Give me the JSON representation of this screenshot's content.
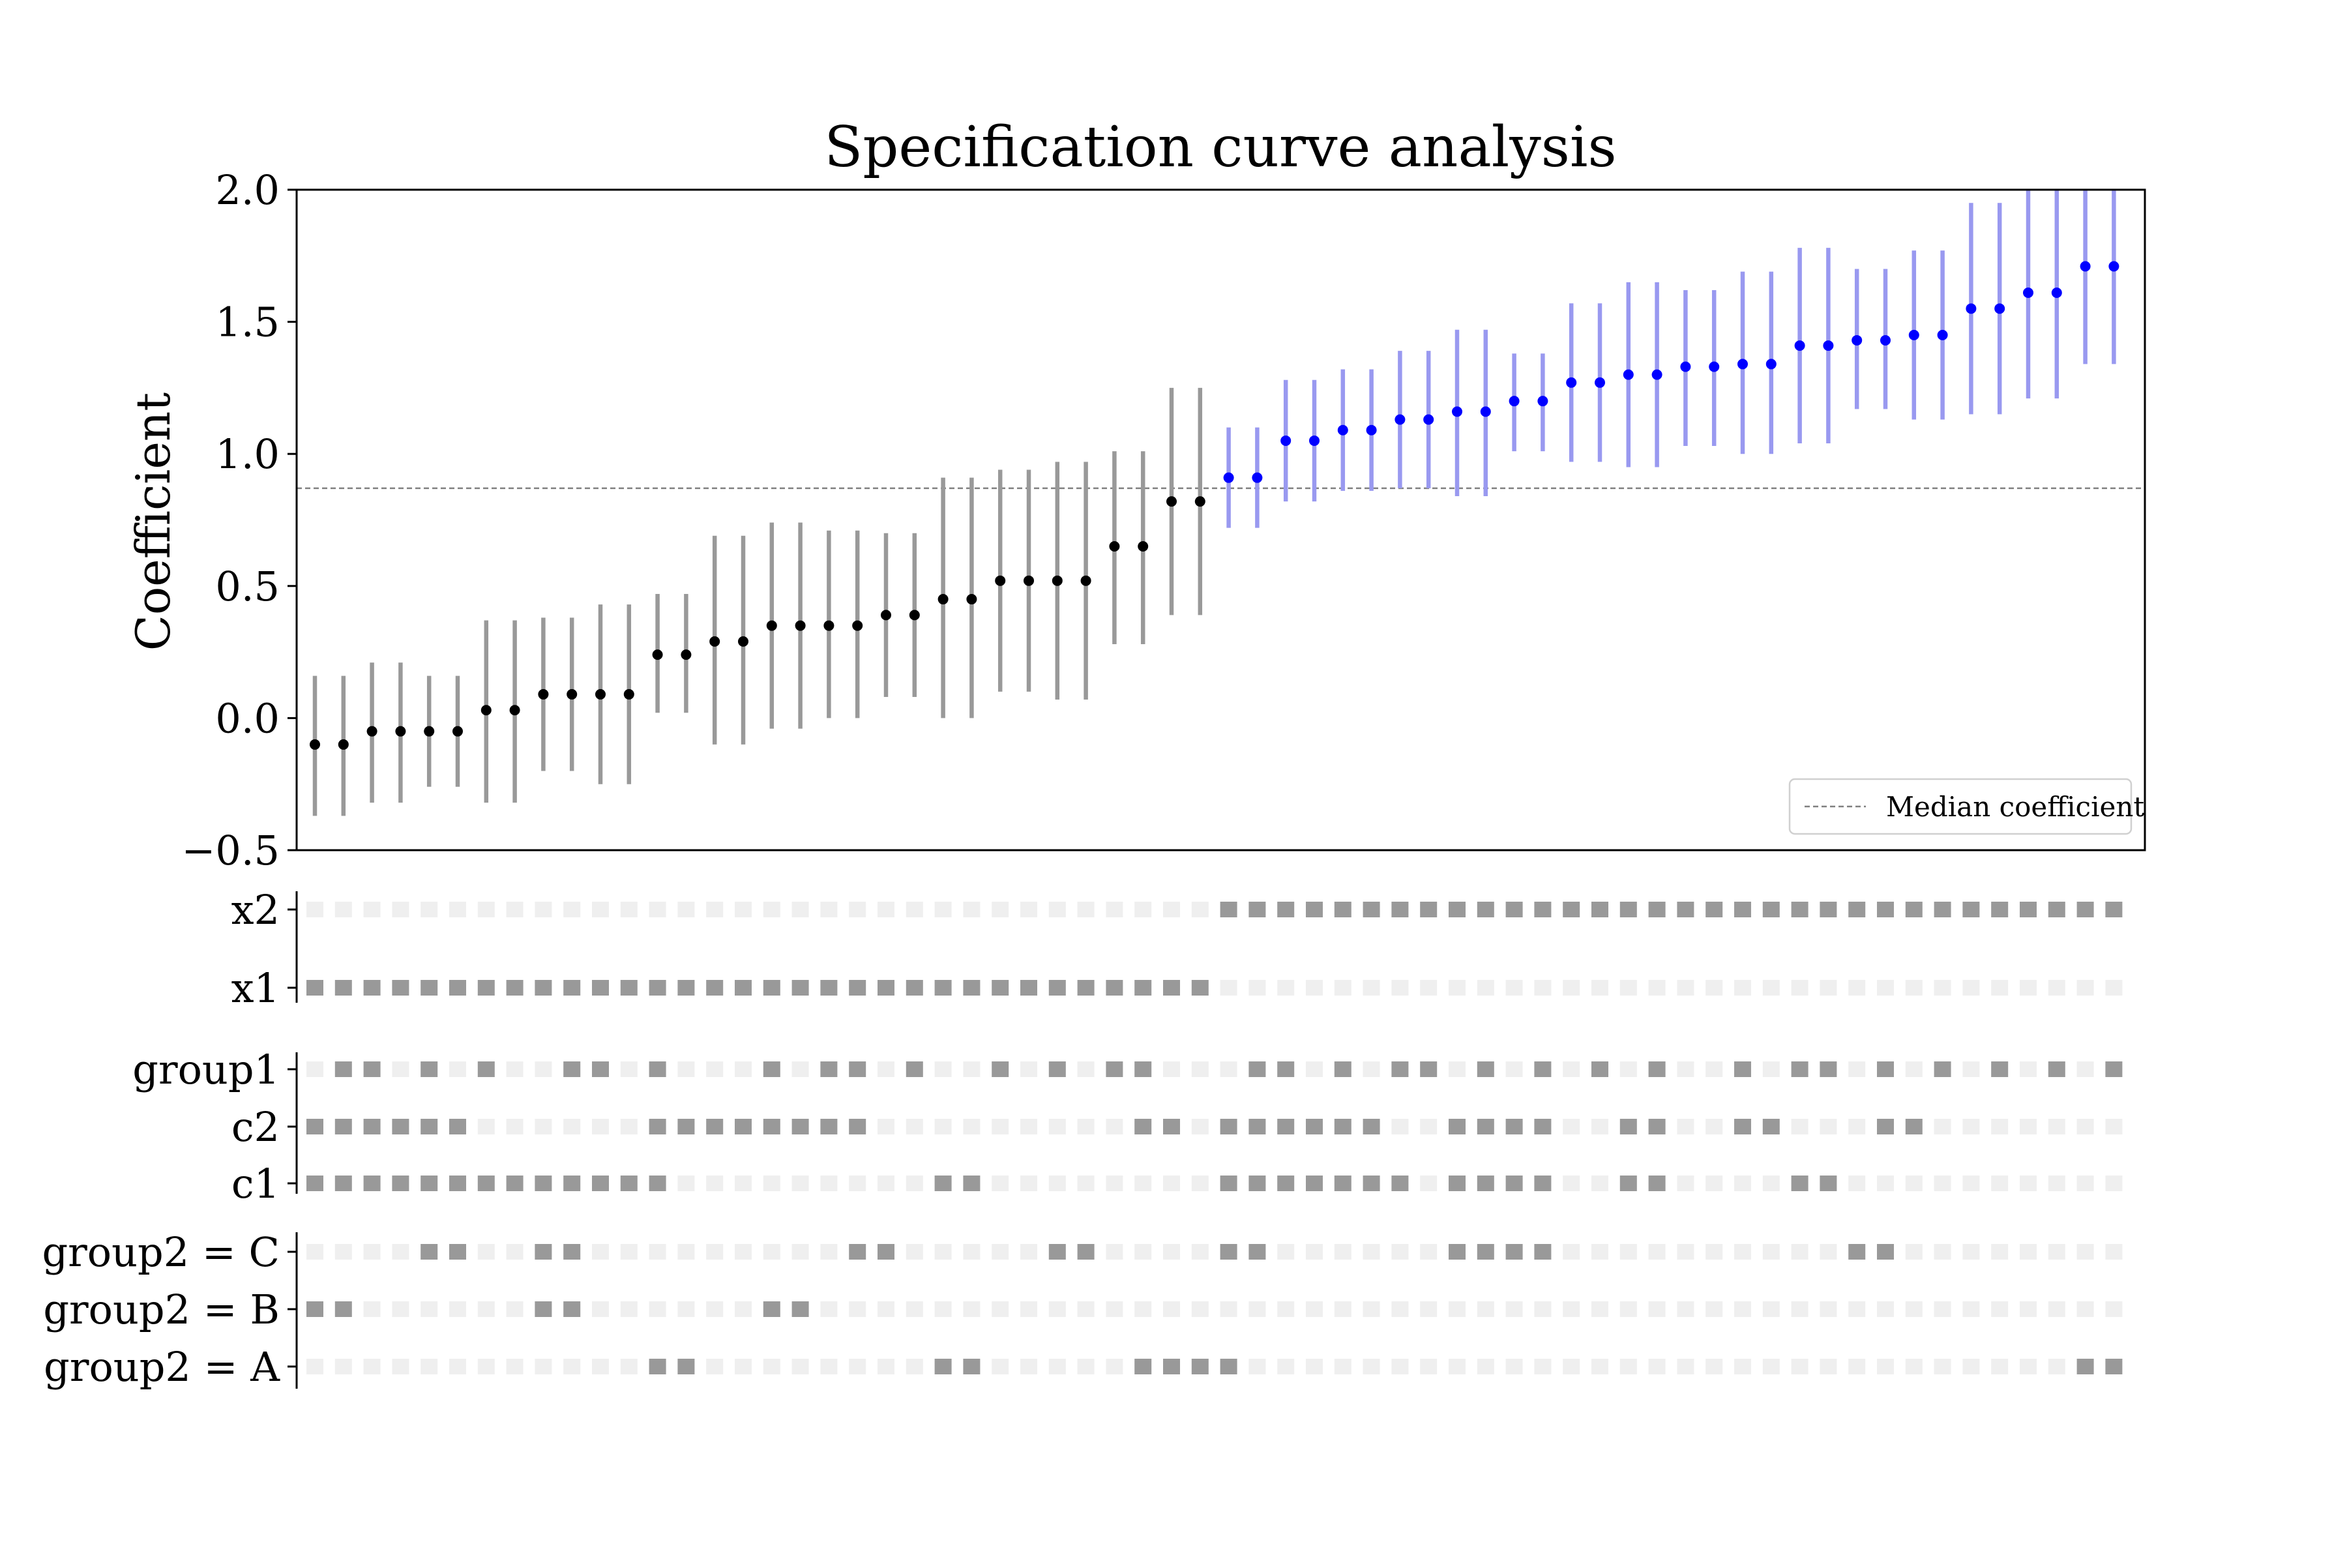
{
  "chart_data": {
    "type": "specification-curve",
    "title": "Specification curve analysis",
    "ylabel": "Coefficient",
    "xlabel": "",
    "ylim": [
      -0.5,
      2.0
    ],
    "yticks": [
      -0.5,
      0.0,
      0.5,
      1.0,
      1.5,
      2.0
    ],
    "ytick_labels": [
      "−0.5",
      "0.0",
      "0.5",
      "1.0",
      "1.5",
      "2.0"
    ],
    "grid": false,
    "median": 0.87,
    "legend": {
      "label": "Median coefficient",
      "placement": "lower right"
    },
    "colors": {
      "not_significant_point": "#000000",
      "not_significant_ci": "#999999",
      "significant_point": "#0000ff",
      "significant_ci": "#9999f0",
      "median_line": "#808080",
      "indicator_on": "#999999",
      "indicator_off": "#efefef"
    },
    "specifications": [
      {
        "coef": -0.1,
        "ci": [
          -0.37,
          0.16
        ],
        "significant": false
      },
      {
        "coef": -0.1,
        "ci": [
          -0.37,
          0.16
        ],
        "significant": false
      },
      {
        "coef": -0.05,
        "ci": [
          -0.32,
          0.21
        ],
        "significant": false
      },
      {
        "coef": -0.05,
        "ci": [
          -0.32,
          0.21
        ],
        "significant": false
      },
      {
        "coef": -0.05,
        "ci": [
          -0.26,
          0.16
        ],
        "significant": false
      },
      {
        "coef": -0.05,
        "ci": [
          -0.26,
          0.16
        ],
        "significant": false
      },
      {
        "coef": 0.03,
        "ci": [
          -0.32,
          0.37
        ],
        "significant": false
      },
      {
        "coef": 0.03,
        "ci": [
          -0.32,
          0.37
        ],
        "significant": false
      },
      {
        "coef": 0.09,
        "ci": [
          -0.2,
          0.38
        ],
        "significant": false
      },
      {
        "coef": 0.09,
        "ci": [
          -0.2,
          0.38
        ],
        "significant": false
      },
      {
        "coef": 0.09,
        "ci": [
          -0.25,
          0.43
        ],
        "significant": false
      },
      {
        "coef": 0.09,
        "ci": [
          -0.25,
          0.43
        ],
        "significant": false
      },
      {
        "coef": 0.24,
        "ci": [
          0.02,
          0.47
        ],
        "significant": false
      },
      {
        "coef": 0.24,
        "ci": [
          0.02,
          0.47
        ],
        "significant": false
      },
      {
        "coef": 0.29,
        "ci": [
          -0.1,
          0.69
        ],
        "significant": false
      },
      {
        "coef": 0.29,
        "ci": [
          -0.1,
          0.69
        ],
        "significant": false
      },
      {
        "coef": 0.35,
        "ci": [
          -0.04,
          0.74
        ],
        "significant": false
      },
      {
        "coef": 0.35,
        "ci": [
          -0.04,
          0.74
        ],
        "significant": false
      },
      {
        "coef": 0.35,
        "ci": [
          0.0,
          0.71
        ],
        "significant": false
      },
      {
        "coef": 0.35,
        "ci": [
          0.0,
          0.71
        ],
        "significant": false
      },
      {
        "coef": 0.39,
        "ci": [
          0.08,
          0.7
        ],
        "significant": false
      },
      {
        "coef": 0.39,
        "ci": [
          0.08,
          0.7
        ],
        "significant": false
      },
      {
        "coef": 0.45,
        "ci": [
          0.0,
          0.91
        ],
        "significant": false
      },
      {
        "coef": 0.45,
        "ci": [
          0.0,
          0.91
        ],
        "significant": false
      },
      {
        "coef": 0.52,
        "ci": [
          0.1,
          0.94
        ],
        "significant": false
      },
      {
        "coef": 0.52,
        "ci": [
          0.1,
          0.94
        ],
        "significant": false
      },
      {
        "coef": 0.52,
        "ci": [
          0.07,
          0.97
        ],
        "significant": false
      },
      {
        "coef": 0.52,
        "ci": [
          0.07,
          0.97
        ],
        "significant": false
      },
      {
        "coef": 0.65,
        "ci": [
          0.28,
          1.01
        ],
        "significant": false
      },
      {
        "coef": 0.65,
        "ci": [
          0.28,
          1.01
        ],
        "significant": false
      },
      {
        "coef": 0.82,
        "ci": [
          0.39,
          1.25
        ],
        "significant": false
      },
      {
        "coef": 0.82,
        "ci": [
          0.39,
          1.25
        ],
        "significant": false
      },
      {
        "coef": 0.91,
        "ci": [
          0.72,
          1.1
        ],
        "significant": true
      },
      {
        "coef": 0.91,
        "ci": [
          0.72,
          1.1
        ],
        "significant": true
      },
      {
        "coef": 1.05,
        "ci": [
          0.82,
          1.28
        ],
        "significant": true
      },
      {
        "coef": 1.05,
        "ci": [
          0.82,
          1.28
        ],
        "significant": true
      },
      {
        "coef": 1.09,
        "ci": [
          0.86,
          1.32
        ],
        "significant": true
      },
      {
        "coef": 1.09,
        "ci": [
          0.86,
          1.32
        ],
        "significant": true
      },
      {
        "coef": 1.13,
        "ci": [
          0.87,
          1.39
        ],
        "significant": true
      },
      {
        "coef": 1.13,
        "ci": [
          0.87,
          1.39
        ],
        "significant": true
      },
      {
        "coef": 1.16,
        "ci": [
          0.84,
          1.47
        ],
        "significant": true
      },
      {
        "coef": 1.16,
        "ci": [
          0.84,
          1.47
        ],
        "significant": true
      },
      {
        "coef": 1.2,
        "ci": [
          1.01,
          1.38
        ],
        "significant": true
      },
      {
        "coef": 1.2,
        "ci": [
          1.01,
          1.38
        ],
        "significant": true
      },
      {
        "coef": 1.27,
        "ci": [
          0.97,
          1.57
        ],
        "significant": true
      },
      {
        "coef": 1.27,
        "ci": [
          0.97,
          1.57
        ],
        "significant": true
      },
      {
        "coef": 1.3,
        "ci": [
          0.95,
          1.65
        ],
        "significant": true
      },
      {
        "coef": 1.3,
        "ci": [
          0.95,
          1.65
        ],
        "significant": true
      },
      {
        "coef": 1.33,
        "ci": [
          1.03,
          1.62
        ],
        "significant": true
      },
      {
        "coef": 1.33,
        "ci": [
          1.03,
          1.62
        ],
        "significant": true
      },
      {
        "coef": 1.34,
        "ci": [
          1.0,
          1.69
        ],
        "significant": true
      },
      {
        "coef": 1.34,
        "ci": [
          1.0,
          1.69
        ],
        "significant": true
      },
      {
        "coef": 1.41,
        "ci": [
          1.04,
          1.78
        ],
        "significant": true
      },
      {
        "coef": 1.41,
        "ci": [
          1.04,
          1.78
        ],
        "significant": true
      },
      {
        "coef": 1.43,
        "ci": [
          1.17,
          1.7
        ],
        "significant": true
      },
      {
        "coef": 1.43,
        "ci": [
          1.17,
          1.7
        ],
        "significant": true
      },
      {
        "coef": 1.45,
        "ci": [
          1.13,
          1.77
        ],
        "significant": true
      },
      {
        "coef": 1.45,
        "ci": [
          1.13,
          1.77
        ],
        "significant": true
      },
      {
        "coef": 1.55,
        "ci": [
          1.15,
          1.95
        ],
        "significant": true
      },
      {
        "coef": 1.55,
        "ci": [
          1.15,
          1.95
        ],
        "significant": true
      },
      {
        "coef": 1.61,
        "ci": [
          1.21,
          2.01
        ],
        "significant": true
      },
      {
        "coef": 1.61,
        "ci": [
          1.21,
          2.01
        ],
        "significant": true
      },
      {
        "coef": 1.71,
        "ci": [
          1.34,
          2.08
        ],
        "significant": true
      },
      {
        "coef": 1.71,
        "ci": [
          1.34,
          2.08
        ],
        "significant": true
      }
    ],
    "indicator_groups": [
      {
        "rows": [
          {
            "label": "x2",
            "pattern": "0000000000000000000000000000000011111111111111111111111111111111"
          },
          {
            "label": "x1",
            "pattern": "1111111111111111111111111111111100000000000000000000000000000000"
          }
        ]
      },
      {
        "rows": [
          {
            "label": "group1",
            "pattern": "0110101001101000101101001010110001101011010101010010110101010101"
          },
          {
            "label": "c2",
            "pattern": "1111110000001111111100000000011011111100111100110011000110000000"
          },
          {
            "label": "c1",
            "pattern": "1111111111111000000000110000000011111110111100110000110000000000"
          }
        ]
      },
      {
        "rows": [
          {
            "label": "group2 = C",
            "pattern": "0000110011000000000110000011000011000000111100000000001100000000"
          },
          {
            "label": "group2 = B",
            "pattern": "1100000011000000110000000000000000000000000000000000000000000000"
          },
          {
            "label": "group2 = A",
            "pattern": "0000000000001100000000110000011110000000000000000000000000000011"
          }
        ]
      }
    ]
  }
}
